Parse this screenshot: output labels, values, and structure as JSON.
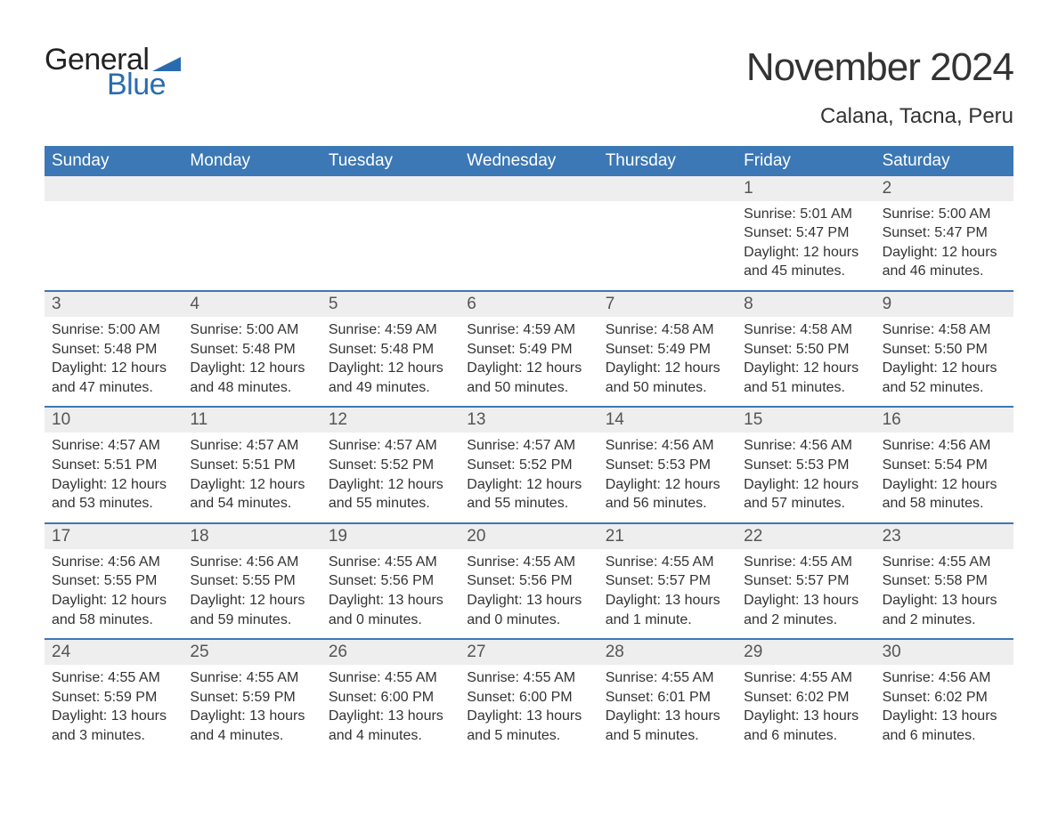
{
  "logo": {
    "text1": "General",
    "text2": "Blue",
    "brand_color": "#2a6bb0"
  },
  "title": "November 2024",
  "location": "Calana, Tacna, Peru",
  "day_headers": [
    "Sunday",
    "Monday",
    "Tuesday",
    "Wednesday",
    "Thursday",
    "Friday",
    "Saturday"
  ],
  "header_bg": "#3b78b5",
  "weeks": [
    {
      "days": [
        {
          "num": "",
          "sunrise": "",
          "sunset": "",
          "daylight": ""
        },
        {
          "num": "",
          "sunrise": "",
          "sunset": "",
          "daylight": ""
        },
        {
          "num": "",
          "sunrise": "",
          "sunset": "",
          "daylight": ""
        },
        {
          "num": "",
          "sunrise": "",
          "sunset": "",
          "daylight": ""
        },
        {
          "num": "",
          "sunrise": "",
          "sunset": "",
          "daylight": ""
        },
        {
          "num": "1",
          "sunrise": "Sunrise: 5:01 AM",
          "sunset": "Sunset: 5:47 PM",
          "daylight": "Daylight: 12 hours and 45 minutes."
        },
        {
          "num": "2",
          "sunrise": "Sunrise: 5:00 AM",
          "sunset": "Sunset: 5:47 PM",
          "daylight": "Daylight: 12 hours and 46 minutes."
        }
      ]
    },
    {
      "days": [
        {
          "num": "3",
          "sunrise": "Sunrise: 5:00 AM",
          "sunset": "Sunset: 5:48 PM",
          "daylight": "Daylight: 12 hours and 47 minutes."
        },
        {
          "num": "4",
          "sunrise": "Sunrise: 5:00 AM",
          "sunset": "Sunset: 5:48 PM",
          "daylight": "Daylight: 12 hours and 48 minutes."
        },
        {
          "num": "5",
          "sunrise": "Sunrise: 4:59 AM",
          "sunset": "Sunset: 5:48 PM",
          "daylight": "Daylight: 12 hours and 49 minutes."
        },
        {
          "num": "6",
          "sunrise": "Sunrise: 4:59 AM",
          "sunset": "Sunset: 5:49 PM",
          "daylight": "Daylight: 12 hours and 50 minutes."
        },
        {
          "num": "7",
          "sunrise": "Sunrise: 4:58 AM",
          "sunset": "Sunset: 5:49 PM",
          "daylight": "Daylight: 12 hours and 50 minutes."
        },
        {
          "num": "8",
          "sunrise": "Sunrise: 4:58 AM",
          "sunset": "Sunset: 5:50 PM",
          "daylight": "Daylight: 12 hours and 51 minutes."
        },
        {
          "num": "9",
          "sunrise": "Sunrise: 4:58 AM",
          "sunset": "Sunset: 5:50 PM",
          "daylight": "Daylight: 12 hours and 52 minutes."
        }
      ]
    },
    {
      "days": [
        {
          "num": "10",
          "sunrise": "Sunrise: 4:57 AM",
          "sunset": "Sunset: 5:51 PM",
          "daylight": "Daylight: 12 hours and 53 minutes."
        },
        {
          "num": "11",
          "sunrise": "Sunrise: 4:57 AM",
          "sunset": "Sunset: 5:51 PM",
          "daylight": "Daylight: 12 hours and 54 minutes."
        },
        {
          "num": "12",
          "sunrise": "Sunrise: 4:57 AM",
          "sunset": "Sunset: 5:52 PM",
          "daylight": "Daylight: 12 hours and 55 minutes."
        },
        {
          "num": "13",
          "sunrise": "Sunrise: 4:57 AM",
          "sunset": "Sunset: 5:52 PM",
          "daylight": "Daylight: 12 hours and 55 minutes."
        },
        {
          "num": "14",
          "sunrise": "Sunrise: 4:56 AM",
          "sunset": "Sunset: 5:53 PM",
          "daylight": "Daylight: 12 hours and 56 minutes."
        },
        {
          "num": "15",
          "sunrise": "Sunrise: 4:56 AM",
          "sunset": "Sunset: 5:53 PM",
          "daylight": "Daylight: 12 hours and 57 minutes."
        },
        {
          "num": "16",
          "sunrise": "Sunrise: 4:56 AM",
          "sunset": "Sunset: 5:54 PM",
          "daylight": "Daylight: 12 hours and 58 minutes."
        }
      ]
    },
    {
      "days": [
        {
          "num": "17",
          "sunrise": "Sunrise: 4:56 AM",
          "sunset": "Sunset: 5:55 PM",
          "daylight": "Daylight: 12 hours and 58 minutes."
        },
        {
          "num": "18",
          "sunrise": "Sunrise: 4:56 AM",
          "sunset": "Sunset: 5:55 PM",
          "daylight": "Daylight: 12 hours and 59 minutes."
        },
        {
          "num": "19",
          "sunrise": "Sunrise: 4:55 AM",
          "sunset": "Sunset: 5:56 PM",
          "daylight": "Daylight: 13 hours and 0 minutes."
        },
        {
          "num": "20",
          "sunrise": "Sunrise: 4:55 AM",
          "sunset": "Sunset: 5:56 PM",
          "daylight": "Daylight: 13 hours and 0 minutes."
        },
        {
          "num": "21",
          "sunrise": "Sunrise: 4:55 AM",
          "sunset": "Sunset: 5:57 PM",
          "daylight": "Daylight: 13 hours and 1 minute."
        },
        {
          "num": "22",
          "sunrise": "Sunrise: 4:55 AM",
          "sunset": "Sunset: 5:57 PM",
          "daylight": "Daylight: 13 hours and 2 minutes."
        },
        {
          "num": "23",
          "sunrise": "Sunrise: 4:55 AM",
          "sunset": "Sunset: 5:58 PM",
          "daylight": "Daylight: 13 hours and 2 minutes."
        }
      ]
    },
    {
      "days": [
        {
          "num": "24",
          "sunrise": "Sunrise: 4:55 AM",
          "sunset": "Sunset: 5:59 PM",
          "daylight": "Daylight: 13 hours and 3 minutes."
        },
        {
          "num": "25",
          "sunrise": "Sunrise: 4:55 AM",
          "sunset": "Sunset: 5:59 PM",
          "daylight": "Daylight: 13 hours and 4 minutes."
        },
        {
          "num": "26",
          "sunrise": "Sunrise: 4:55 AM",
          "sunset": "Sunset: 6:00 PM",
          "daylight": "Daylight: 13 hours and 4 minutes."
        },
        {
          "num": "27",
          "sunrise": "Sunrise: 4:55 AM",
          "sunset": "Sunset: 6:00 PM",
          "daylight": "Daylight: 13 hours and 5 minutes."
        },
        {
          "num": "28",
          "sunrise": "Sunrise: 4:55 AM",
          "sunset": "Sunset: 6:01 PM",
          "daylight": "Daylight: 13 hours and 5 minutes."
        },
        {
          "num": "29",
          "sunrise": "Sunrise: 4:55 AM",
          "sunset": "Sunset: 6:02 PM",
          "daylight": "Daylight: 13 hours and 6 minutes."
        },
        {
          "num": "30",
          "sunrise": "Sunrise: 4:56 AM",
          "sunset": "Sunset: 6:02 PM",
          "daylight": "Daylight: 13 hours and 6 minutes."
        }
      ]
    }
  ]
}
